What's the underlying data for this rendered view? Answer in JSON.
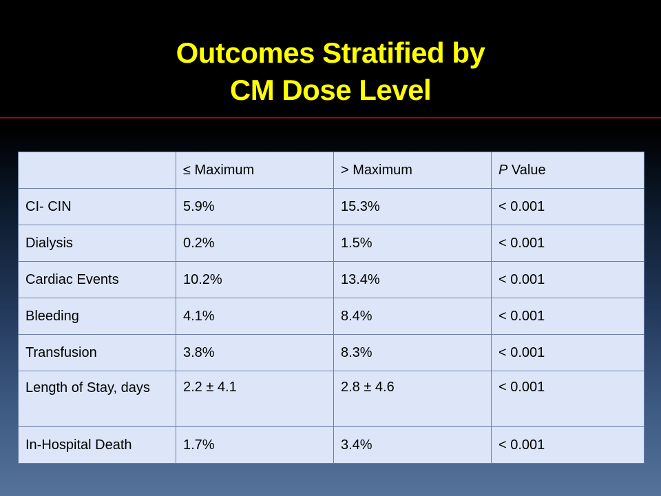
{
  "title": {
    "line1": "Outcomes Stratified by",
    "line2": "CM Dose Level"
  },
  "table": {
    "headers": {
      "col0": "",
      "col1": "≤ Maximum",
      "col2": "> Maximum",
      "col3_italic": "P",
      "col3_rest": " Value"
    },
    "rows": [
      {
        "label": "CI- CIN",
        "max_le": "5.9%",
        "max_gt": "15.3%",
        "p": "< 0.001"
      },
      {
        "label": "Dialysis",
        "max_le": "0.2%",
        "max_gt": "1.5%",
        "p": "< 0.001"
      },
      {
        "label": "Cardiac Events",
        "max_le": "10.2%",
        "max_gt": "13.4%",
        "p": "< 0.001"
      },
      {
        "label": "Bleeding",
        "max_le": "4.1%",
        "max_gt": "8.4%",
        "p": "< 0.001"
      },
      {
        "label": "Transfusion",
        "max_le": "3.8%",
        "max_gt": "8.3%",
        "p": "< 0.001"
      },
      {
        "label": "Length of Stay, days",
        "max_le": "2.2 ± 4.1",
        "max_gt": "2.8 ± 4.6",
        "p": "< 0.001"
      },
      {
        "label": "In-Hospital Death",
        "max_le": "1.7%",
        "max_gt": "3.4%",
        "p": "< 0.001"
      }
    ]
  }
}
